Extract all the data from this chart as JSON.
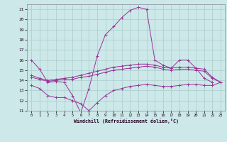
{
  "background_color": "#cce8e8",
  "grid_color": "#aacccc",
  "line_color": "#993399",
  "xlim": [
    -0.5,
    23.5
  ],
  "ylim": [
    11,
    21.5
  ],
  "yticks": [
    11,
    12,
    13,
    14,
    15,
    16,
    17,
    18,
    19,
    20,
    21
  ],
  "xticks": [
    0,
    1,
    2,
    3,
    4,
    5,
    6,
    7,
    8,
    9,
    10,
    11,
    12,
    13,
    14,
    15,
    16,
    17,
    18,
    19,
    20,
    21,
    22,
    23
  ],
  "xlabel": "Windchill (Refroidissement éolien,°C)",
  "series": [
    [
      16.0,
      15.1,
      13.8,
      13.9,
      13.8,
      12.5,
      10.8,
      13.2,
      16.4,
      18.5,
      19.3,
      20.2,
      20.9,
      21.2,
      21.0,
      16.0,
      15.5,
      15.2,
      16.0,
      16.0,
      15.2,
      14.2,
      13.8,
      null
    ],
    [
      14.5,
      14.2,
      14.0,
      14.1,
      14.2,
      14.3,
      14.5,
      14.7,
      14.9,
      15.1,
      15.3,
      15.4,
      15.5,
      15.6,
      15.6,
      15.5,
      15.3,
      15.2,
      15.3,
      15.3,
      15.2,
      15.1,
      14.3,
      13.8
    ],
    [
      14.3,
      14.1,
      13.9,
      14.0,
      14.1,
      14.1,
      14.3,
      14.4,
      14.6,
      14.8,
      15.0,
      15.1,
      15.2,
      15.3,
      15.4,
      15.3,
      15.1,
      15.0,
      15.1,
      15.1,
      15.0,
      14.9,
      14.2,
      13.8
    ],
    [
      13.5,
      13.2,
      12.5,
      12.3,
      12.3,
      12.0,
      11.7,
      11.0,
      11.8,
      12.5,
      13.0,
      13.2,
      13.4,
      13.5,
      13.6,
      13.5,
      13.4,
      13.4,
      13.5,
      13.6,
      13.6,
      13.5,
      13.5,
      13.8
    ]
  ]
}
